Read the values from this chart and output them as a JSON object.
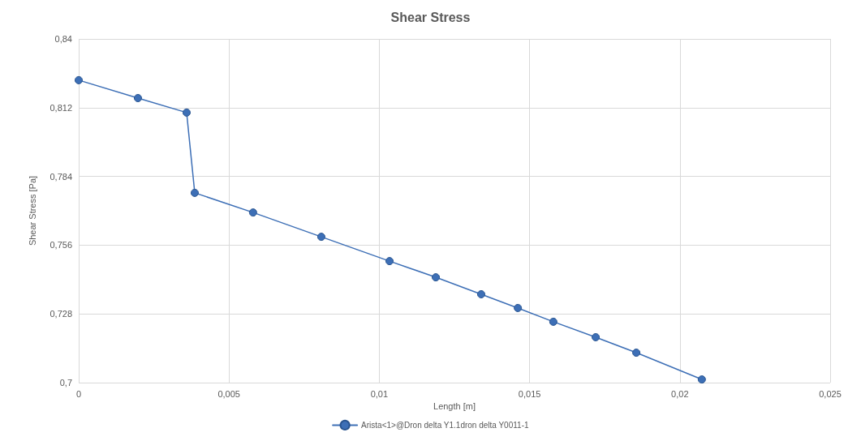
{
  "chart_data": {
    "type": "line",
    "title": "Shear Stress",
    "xlabel": "Length [m]",
    "ylabel": "Shear Stress [Pa]",
    "x": [
      0,
      0.00197,
      0.00359,
      0.00386,
      0.0058,
      0.00807,
      0.01034,
      0.01188,
      0.01339,
      0.01461,
      0.01579,
      0.0172,
      0.01855,
      0.02073
    ],
    "series": [
      {
        "name": "Arista<1>@Dron delta Y1.1dron delta Y0011-1",
        "color": "#3d6fb6",
        "values": [
          0.8232,
          0.8159,
          0.81,
          0.7773,
          0.7693,
          0.7594,
          0.7495,
          0.7429,
          0.736,
          0.7304,
          0.7248,
          0.7185,
          0.7122,
          0.7013
        ]
      }
    ],
    "xlim": [
      0,
      0.025
    ],
    "xticks": [
      0,
      {
        "value": 0.005,
        "label": "0,005"
      },
      {
        "value": 0.01,
        "label": "0,01"
      },
      {
        "value": 0.015,
        "label": "0,015"
      },
      {
        "value": 0.02,
        "label": "0,02"
      },
      {
        "value": 0.025,
        "label": "0,025"
      }
    ],
    "ylim": [
      0.7,
      0.84
    ],
    "yticks": [
      {
        "value": 0.7,
        "label": "0,7"
      },
      {
        "value": 0.728,
        "label": "0,728"
      },
      {
        "value": 0.756,
        "label": "0,756"
      },
      {
        "value": 0.784,
        "label": "0,784"
      },
      {
        "value": 0.812,
        "label": "0,812"
      },
      {
        "value": 0.84,
        "label": "0,84"
      }
    ],
    "grid": true,
    "legend": "bottom",
    "marker": "circle",
    "line_style": "solid"
  }
}
